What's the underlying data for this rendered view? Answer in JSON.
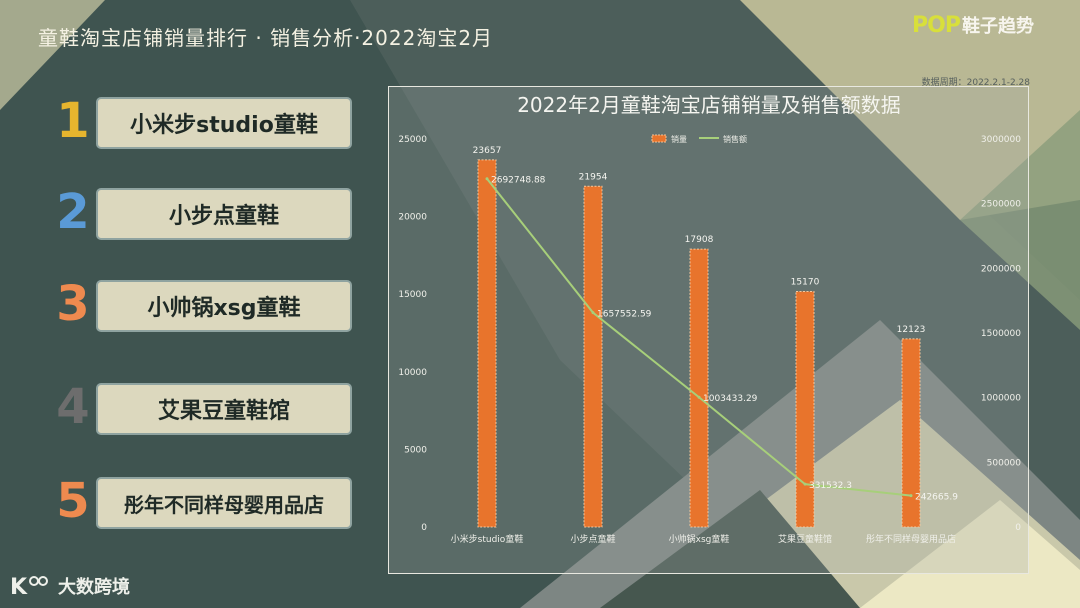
{
  "header": {
    "title": "童鞋淘宝店铺销量排行 · 销售分析·2022淘宝2月"
  },
  "brand": {
    "logo_text": "POP",
    "name": "鞋子趋势"
  },
  "period_text": "数据周期：2022.2.1-2.28",
  "colors": {
    "background": "#3f5450",
    "accent_yellow": "#e6b52e",
    "accent_blue": "#5a9ad6",
    "accent_orange": "#ee8a4f",
    "accent_gray": "#6d6d6d",
    "bar": "#e8742c",
    "line": "#a7cf7a"
  },
  "ranking": [
    {
      "rank": "1",
      "name": "小米步studio童鞋",
      "color": "#e6b52e"
    },
    {
      "rank": "2",
      "name": "小步点童鞋",
      "color": "#5a9ad6"
    },
    {
      "rank": "3",
      "name": "小帅锅xsg童鞋",
      "color": "#ee8a4f"
    },
    {
      "rank": "4",
      "name": "艾果豆童鞋馆",
      "color": "#6d6d6d"
    },
    {
      "rank": "5",
      "name": "彤年不同样母婴用品店",
      "color": "#ee8a4f"
    }
  ],
  "chart_data": {
    "type": "bar",
    "title": "2022年2月童鞋淘宝店铺销量及销售额数据",
    "categories": [
      "小米步studio童鞋",
      "小步点童鞋",
      "小帅锅xsg童鞋",
      "艾果豆童鞋馆",
      "彤年不同样母婴用品店"
    ],
    "series": [
      {
        "name": "销量",
        "type": "bar",
        "axis": "left",
        "values": [
          23657,
          21954,
          17908,
          15170,
          12123
        ],
        "labels": [
          "23657",
          "21954",
          "17908",
          "15170",
          "12123"
        ]
      },
      {
        "name": "销售额",
        "type": "line",
        "axis": "right",
        "values": [
          2692748.88,
          1657552.59,
          1003433.29,
          331532.3,
          242665.9
        ],
        "labels": [
          "2692748.88",
          "1657552.59",
          "1003433.29",
          "331532.3",
          "242665.9"
        ]
      }
    ],
    "ylim": [
      0,
      25000
    ],
    "y2lim": [
      0,
      3000000
    ],
    "yticks": [
      "0",
      "5000",
      "10000",
      "15000",
      "20000",
      "25000"
    ],
    "y2ticks": [
      "0",
      "500000",
      "1000000",
      "1500000",
      "2000000",
      "2500000",
      "3000000"
    ],
    "legend": "top-center",
    "grid": false
  },
  "footer": {
    "logo_mark": "K",
    "logo_text": "大数跨境"
  }
}
